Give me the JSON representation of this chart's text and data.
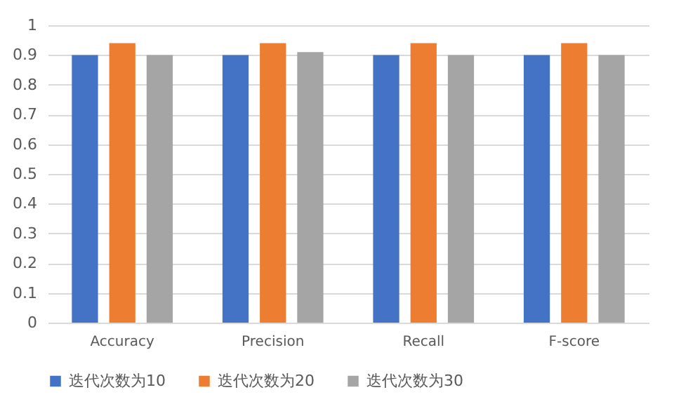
{
  "chart_data": {
    "type": "bar",
    "categories": [
      "Accuracy",
      "Precision",
      "Recall",
      "F-score"
    ],
    "series": [
      {
        "name": "迭代次数为10",
        "color": "#4472c4",
        "values": [
          0.9,
          0.9,
          0.9,
          0.9
        ]
      },
      {
        "name": "迭代次数为20",
        "color": "#ed7d31",
        "values": [
          0.94,
          0.94,
          0.94,
          0.94
        ]
      },
      {
        "name": "迭代次数为30",
        "color": "#a5a5a5",
        "values": [
          0.9,
          0.91,
          0.9,
          0.9
        ]
      }
    ],
    "ylim": [
      0,
      1
    ],
    "yticks": [
      0,
      0.1,
      0.2,
      0.3,
      0.4,
      0.5,
      0.6,
      0.7,
      0.8,
      0.9,
      1
    ],
    "grid": "y",
    "legend": "bottom"
  }
}
